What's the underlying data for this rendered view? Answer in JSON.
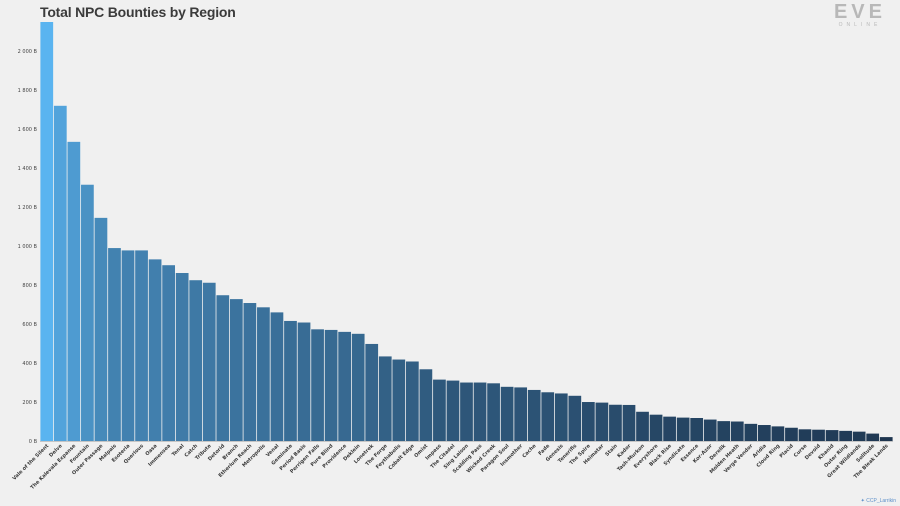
{
  "header": {
    "logo_big": "EVE",
    "logo_small": "ONLINE",
    "credit": "CCP_Larrikin",
    "credit_icon": "twitter-bird-icon"
  },
  "chart_data": {
    "type": "bar",
    "title": "Total NPC Bounties by Region",
    "xlabel": "",
    "ylabel": "",
    "ylim": [
      0,
      2150
    ],
    "grid": false,
    "yticks": [
      0,
      200,
      400,
      600,
      800,
      1000,
      1200,
      1400,
      1600,
      1800,
      2000
    ],
    "ytick_labels": [
      "0 B",
      "200 B",
      "400 B",
      "600 B",
      "800 B",
      "1 000 B",
      "1 200 B",
      "1 400 B",
      "1 600 B",
      "1 800 B",
      "2 000 B"
    ],
    "color_high": "#5ab4f0",
    "color_low": "#1a2d45",
    "categories": [
      "Vale of the Silent",
      "Delve",
      "The Kalevala Expanse",
      "Fountain",
      "Outer Passage",
      "Malpais",
      "Esoteria",
      "Querious",
      "Oasa",
      "Immensea",
      "Tenal",
      "Catch",
      "Tribute",
      "Detorid",
      "Branch",
      "Etherium Reach",
      "Metropolis",
      "Venal",
      "Geminate",
      "Period Basis",
      "Perrigen Falls",
      "Pure Blind",
      "Providence",
      "Deklein",
      "Lonetrek",
      "The Forge",
      "Feythabolis",
      "Cobalt Edge",
      "Omist",
      "Impass",
      "The Citadel",
      "Sing Laison",
      "Scalding Pass",
      "Wicked Creek",
      "Paragon Soul",
      "Insmother",
      "Cache",
      "Fade",
      "Genesis",
      "Tenerifis",
      "The Spire",
      "Heimatar",
      "Stain",
      "Kador",
      "Tash-Murkon",
      "Everyshore",
      "Black Rise",
      "Syndicate",
      "Essence",
      "Kor-Azor",
      "Derelik",
      "Molden Heath",
      "Verge Vendor",
      "Aridia",
      "Cloud Ring",
      "Placid",
      "Curse",
      "Devoid",
      "Khanid",
      "Outer Ring",
      "Great Wildlands",
      "Solitude",
      "The Bleak Lands"
    ],
    "values": [
      2150,
      1720,
      1535,
      1315,
      1145,
      990,
      978,
      978,
      932,
      902,
      862,
      825,
      812,
      748,
      728,
      708,
      686,
      660,
      616,
      608,
      573,
      570,
      560,
      550,
      498,
      434,
      418,
      408,
      368,
      315,
      310,
      300,
      300,
      296,
      278,
      275,
      262,
      250,
      244,
      232,
      200,
      197,
      186,
      185,
      150,
      135,
      125,
      120,
      118,
      110,
      102,
      100,
      88,
      82,
      75,
      68,
      60,
      58,
      56,
      52,
      48,
      38,
      20
    ]
  }
}
